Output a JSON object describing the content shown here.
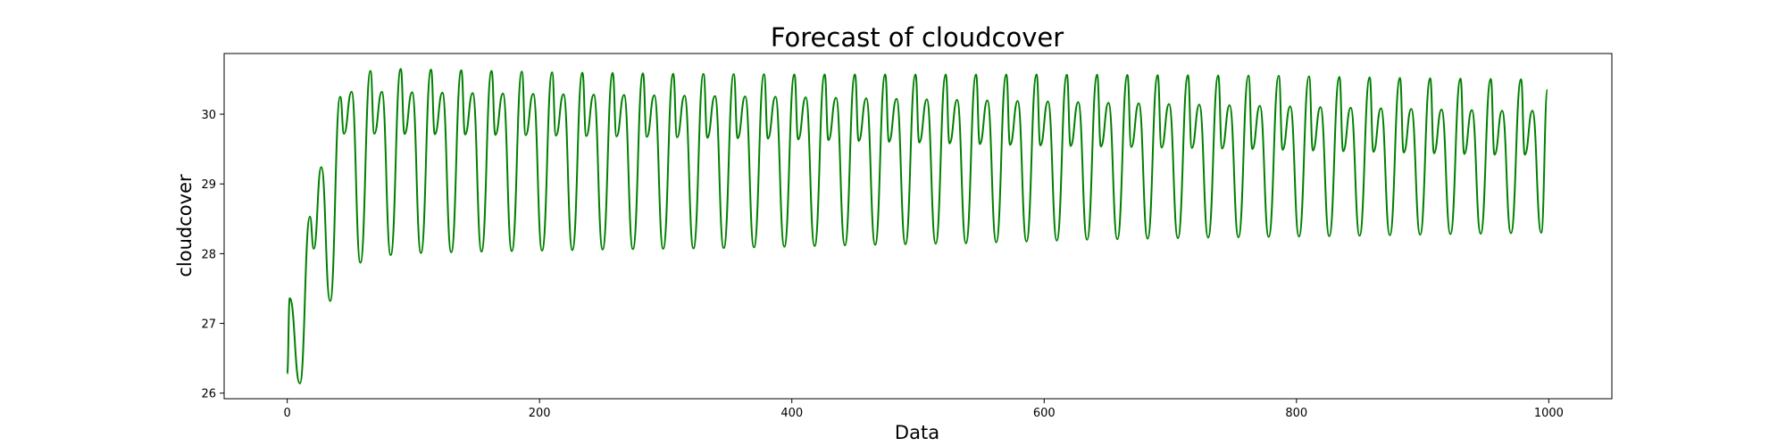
{
  "chart_data": {
    "type": "line",
    "title": "Forecast of cloudcover",
    "xlabel": "Data",
    "ylabel": "cloudcover",
    "xlim": [
      -50,
      1050
    ],
    "ylim": [
      25.92,
      30.87
    ],
    "x_ticks": [
      0,
      200,
      400,
      600,
      800,
      1000
    ],
    "y_ticks": [
      26,
      27,
      28,
      29,
      30
    ],
    "grid": false,
    "series": [
      {
        "color": "#008000",
        "x_start": 0,
        "x_end": 999,
        "start_value": 26.28,
        "end_value": 30.35,
        "cycle_length": 24,
        "peak_points": [
          {
            "x": 2,
            "y": 27.36
          },
          {
            "x": 18,
            "y": 28.53
          },
          {
            "x": 27,
            "y": 29.24
          },
          {
            "x": 42,
            "y": 30.25
          },
          {
            "x": 50,
            "y": 30.18
          },
          {
            "x": 66,
            "y": 30.62
          },
          {
            "x": 90,
            "y": 30.65
          },
          {
            "x": 114,
            "y": 30.64
          },
          {
            "x": 138,
            "y": 30.63
          },
          {
            "x": 162,
            "y": 30.62
          },
          {
            "x": 186,
            "y": 30.61
          },
          {
            "x": 210,
            "y": 30.6
          },
          {
            "x": 306,
            "y": 30.58
          },
          {
            "x": 402,
            "y": 30.57
          },
          {
            "x": 498,
            "y": 30.57
          },
          {
            "x": 594,
            "y": 30.57
          },
          {
            "x": 690,
            "y": 30.56
          },
          {
            "x": 786,
            "y": 30.55
          },
          {
            "x": 882,
            "y": 30.52
          },
          {
            "x": 978,
            "y": 30.5
          }
        ],
        "trough_points": [
          {
            "x": 10,
            "y": 26.14
          },
          {
            "x": 34,
            "y": 27.32
          },
          {
            "x": 58,
            "y": 27.87
          },
          {
            "x": 82,
            "y": 27.98
          },
          {
            "x": 106,
            "y": 28.01
          },
          {
            "x": 154,
            "y": 28.03
          },
          {
            "x": 250,
            "y": 28.06
          },
          {
            "x": 346,
            "y": 28.08
          },
          {
            "x": 442,
            "y": 28.12
          },
          {
            "x": 538,
            "y": 28.15
          },
          {
            "x": 634,
            "y": 28.2
          },
          {
            "x": 730,
            "y": 28.23
          },
          {
            "x": 826,
            "y": 28.25
          },
          {
            "x": 922,
            "y": 28.28
          },
          {
            "x": 994,
            "y": 28.3
          }
        ],
        "secondary_peak_points": [
          {
            "x": 75,
            "y": 30.32
          },
          {
            "x": 195,
            "y": 30.29
          },
          {
            "x": 387,
            "y": 30.25
          },
          {
            "x": 579,
            "y": 30.19
          },
          {
            "x": 771,
            "y": 30.12
          },
          {
            "x": 963,
            "y": 30.05
          }
        ],
        "mid_dip_points": [
          {
            "x": 69,
            "y": 29.72
          },
          {
            "x": 189,
            "y": 29.7
          },
          {
            "x": 381,
            "y": 29.65
          },
          {
            "x": 573,
            "y": 29.56
          },
          {
            "x": 765,
            "y": 29.5
          },
          {
            "x": 957,
            "y": 29.42
          }
        ]
      }
    ]
  }
}
